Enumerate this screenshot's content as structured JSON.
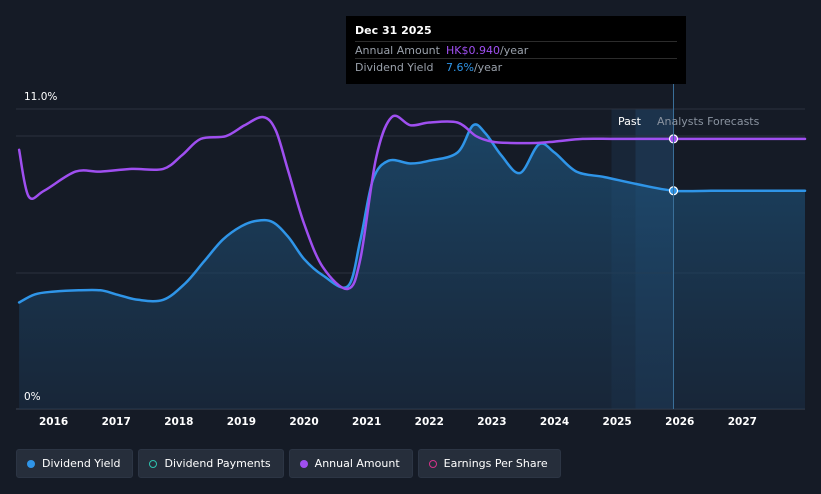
{
  "chart_data": {
    "type": "line",
    "y_ticks": [
      "11.0%",
      "0%"
    ],
    "ylim": [
      0,
      11
    ],
    "xlim": [
      2015.4,
      2028.0
    ],
    "x_ticks": [
      "2016",
      "2017",
      "2018",
      "2019",
      "2020",
      "2021",
      "2022",
      "2023",
      "2024",
      "2025",
      "2026",
      "2027"
    ],
    "x_tick_values": [
      2016,
      2017,
      2018,
      2019,
      2020,
      2021,
      2022,
      2023,
      2024,
      2025,
      2026,
      2027
    ],
    "zones": {
      "past": "Past",
      "forecast": "Analysts Forecasts"
    },
    "forecast_start": 2025.9,
    "series": [
      {
        "name": "Dividend Yield",
        "color": "#2f95e8",
        "filled": true,
        "x": [
          2015.45,
          2015.7,
          2016.0,
          2016.4,
          2016.75,
          2017.0,
          2017.35,
          2017.75,
          2018.1,
          2018.4,
          2018.7,
          2019.0,
          2019.25,
          2019.5,
          2019.75,
          2020.0,
          2020.3,
          2020.7,
          2020.9,
          2021.1,
          2021.35,
          2021.7,
          2022.0,
          2022.45,
          2022.7,
          2022.9,
          2023.15,
          2023.45,
          2023.75,
          2024.0,
          2024.35,
          2024.8,
          2025.3,
          2025.9,
          2026.5,
          2027.0,
          2028.0
        ],
        "values": [
          3.5,
          3.8,
          3.9,
          3.95,
          3.95,
          3.8,
          3.6,
          3.6,
          4.2,
          5.0,
          5.8,
          6.3,
          6.5,
          6.45,
          5.9,
          5.1,
          4.5,
          4.1,
          5.8,
          8.0,
          8.7,
          8.6,
          8.7,
          9.0,
          10.0,
          9.7,
          8.9,
          8.25,
          9.3,
          9.0,
          8.3,
          8.1,
          7.85,
          7.6,
          7.6,
          7.6,
          7.6
        ]
      },
      {
        "name": "Annual Amount",
        "color": "#9f4ff0",
        "filled": false,
        "x": [
          2015.45,
          2015.6,
          2015.85,
          2016.35,
          2016.75,
          2017.25,
          2017.75,
          2018.05,
          2018.35,
          2018.75,
          2019.05,
          2019.35,
          2019.55,
          2019.75,
          2020.0,
          2020.3,
          2020.7,
          2020.9,
          2021.15,
          2021.4,
          2021.7,
          2022.0,
          2022.45,
          2022.75,
          2023.0,
          2023.3,
          2023.7,
          2024.0,
          2024.45,
          2025.0,
          2025.9,
          2026.5,
          2027.0,
          2028.0
        ],
        "values": [
          9.1,
          7.4,
          7.6,
          8.3,
          8.3,
          8.4,
          8.4,
          8.9,
          9.5,
          9.6,
          10.0,
          10.3,
          9.8,
          8.3,
          6.4,
          4.8,
          4.0,
          5.1,
          8.8,
          10.3,
          10.0,
          10.1,
          10.1,
          9.6,
          9.4,
          9.35,
          9.35,
          9.4,
          9.5,
          9.5,
          9.5,
          9.5,
          9.5,
          9.5
        ]
      }
    ]
  },
  "tooltip": {
    "date": "Dec 31 2025",
    "rows": [
      {
        "label": "Annual Amount",
        "value": "HK$0.940",
        "unit": "/year",
        "color": "#9f4ff0"
      },
      {
        "label": "Dividend Yield",
        "value": "7.6%",
        "unit": "/year",
        "color": "#2f95e8"
      }
    ]
  },
  "legend": [
    {
      "label": "Dividend Yield",
      "color": "#2f95e8",
      "filled": true
    },
    {
      "label": "Dividend Payments",
      "color": "#2ec4b0",
      "filled": false
    },
    {
      "label": "Annual Amount",
      "color": "#9f4ff0",
      "filled": true
    },
    {
      "label": "Earnings Per Share",
      "color": "#d6338a",
      "filled": false
    }
  ]
}
